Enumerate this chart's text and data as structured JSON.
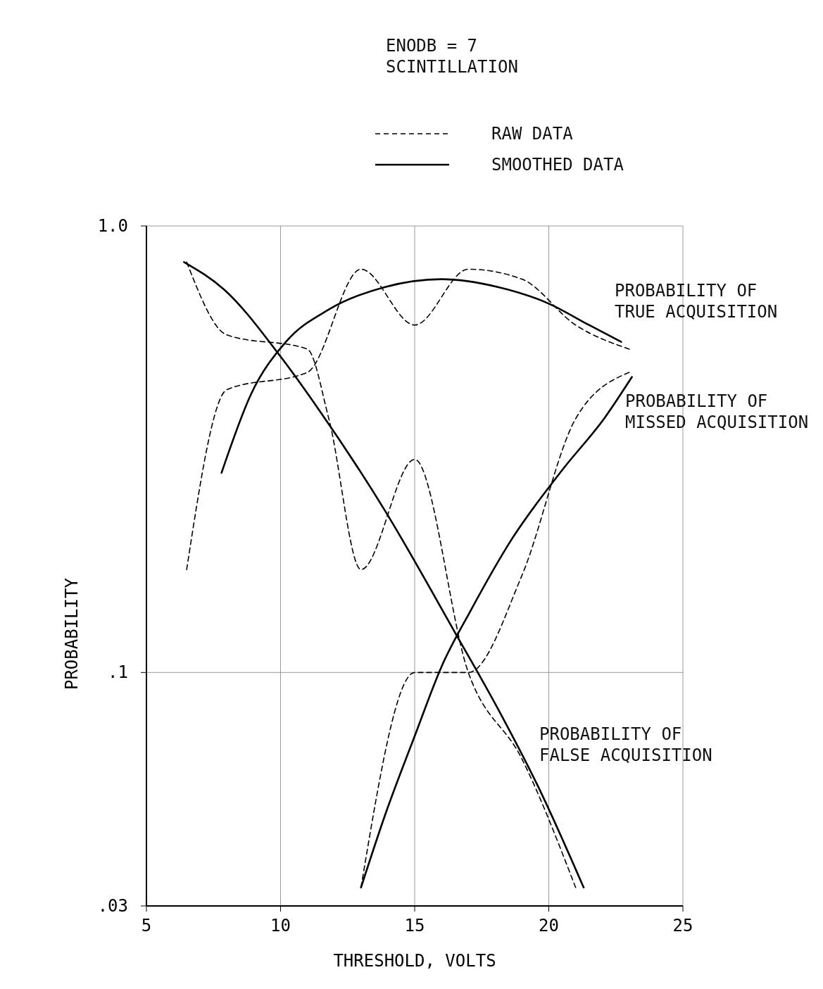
{
  "chart_data": {
    "type": "line",
    "xlabel": "THRESHOLD, VOLTS",
    "ylabel": "PROBABILITY",
    "log": "y",
    "grid": true,
    "xlim": [
      5,
      25
    ],
    "xticks": [
      5,
      10,
      15,
      20,
      25
    ],
    "ylim": [
      0.03,
      1.0
    ],
    "yticks": [
      {
        "value": 1.0,
        "label": "1.0"
      },
      {
        "value": 0.1,
        "label": ".1"
      },
      {
        "value": 0.03,
        "label": ".03"
      }
    ],
    "series": [
      {
        "color": "#000000",
        "line_style": "dashed",
        "x": [
          6.5,
          8,
          11,
          13,
          15,
          17,
          19,
          21,
          23
        ],
        "values": [
          0.17,
          0.43,
          0.47,
          0.8,
          0.6,
          0.8,
          0.76,
          0.6,
          0.53
        ]
      },
      {
        "color": "#000000",
        "line_style": "dashed",
        "x": [
          6.5,
          8,
          11,
          11.8,
          13,
          15,
          17,
          19,
          21
        ],
        "values": [
          0.83,
          0.57,
          0.53,
          0.37,
          0.17,
          0.3,
          0.1,
          0.064,
          0.033
        ]
      },
      {
        "color": "#000000",
        "line_style": "dashed",
        "x": [
          13,
          15,
          17,
          19,
          21,
          23
        ],
        "values": [
          0.033,
          0.1,
          0.1,
          0.165,
          0.37,
          0.47
        ]
      },
      {
        "color": "#000000",
        "line_style": "solid",
        "x": [
          7.8,
          8.9,
          10.2,
          11.8,
          13.9,
          16,
          18.1,
          20,
          21.5,
          22.7
        ],
        "values": [
          0.28,
          0.42,
          0.55,
          0.65,
          0.73,
          0.76,
          0.73,
          0.67,
          0.6,
          0.55
        ]
      },
      {
        "color": "#000000",
        "line_style": "solid",
        "x": [
          6.4,
          7.9,
          10,
          11.4,
          13.9,
          16.5,
          18.1,
          19.7,
          21.3
        ],
        "values": [
          0.83,
          0.72,
          0.51,
          0.39,
          0.23,
          0.123,
          0.083,
          0.054,
          0.033
        ]
      },
      {
        "color": "#000000",
        "line_style": "solid",
        "x": [
          13,
          13.9,
          15,
          16,
          17.1,
          18.6,
          20.5,
          22.1,
          23.1
        ],
        "values": [
          0.033,
          0.048,
          0.072,
          0.103,
          0.138,
          0.198,
          0.284,
          0.373,
          0.459
        ]
      }
    ],
    "annotations": [
      "ENODB = 7\nSCINTILLATION",
      "RAW DATA",
      "SMOOTHED DATA",
      "PROBABILITY OF\nTRUE ACQUISITION",
      "PROBABILITY OF\nMISSED ACQUISITION",
      "PROBABILITY OF\nFALSE ACQUISITION"
    ]
  }
}
